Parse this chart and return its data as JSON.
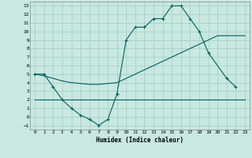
{
  "title": "",
  "xlabel": "Humidex (Indice chaleur)",
  "background_color": "#c8e8e0",
  "grid_color": "#a8d0c8",
  "line_color": "#006060",
  "xlim": [
    -0.5,
    23.5
  ],
  "ylim": [
    -1.5,
    13.5
  ],
  "xticks": [
    0,
    1,
    2,
    3,
    4,
    5,
    6,
    7,
    8,
    9,
    10,
    11,
    12,
    13,
    14,
    15,
    16,
    17,
    18,
    19,
    20,
    21,
    22,
    23
  ],
  "yticks": [
    -1,
    0,
    1,
    2,
    3,
    4,
    5,
    6,
    7,
    8,
    9,
    10,
    11,
    12,
    13
  ],
  "line1_x": [
    0,
    1,
    2,
    3,
    4,
    5,
    6,
    7,
    8,
    9,
    10,
    11,
    12,
    13,
    14,
    15,
    16,
    17,
    18,
    19,
    21,
    22
  ],
  "line1_y": [
    5.0,
    5.0,
    3.5,
    2.0,
    1.0,
    0.2,
    -0.3,
    -1.0,
    -0.3,
    2.7,
    9.0,
    10.5,
    10.5,
    11.5,
    11.5,
    13.0,
    13.0,
    11.5,
    10.0,
    7.5,
    4.5,
    3.5
  ],
  "line2_x": [
    0,
    1,
    2,
    3,
    4,
    5,
    6,
    7,
    8,
    9,
    10,
    11,
    12,
    13,
    14,
    15,
    16,
    17,
    18,
    19,
    20,
    21,
    22,
    23
  ],
  "line2_y": [
    5.0,
    4.8,
    4.5,
    4.2,
    4.0,
    3.9,
    3.8,
    3.8,
    3.9,
    4.0,
    4.5,
    5.0,
    5.5,
    6.0,
    6.5,
    7.0,
    7.5,
    8.0,
    8.5,
    9.0,
    9.5,
    9.5,
    9.5,
    9.5
  ],
  "line3_x": [
    0,
    1,
    2,
    3,
    4,
    5,
    6,
    7,
    8,
    9,
    10,
    11,
    12,
    13,
    14,
    15,
    16,
    17,
    18,
    19,
    20,
    21,
    22,
    23
  ],
  "line3_y": [
    2.0,
    2.0,
    2.0,
    2.0,
    2.0,
    2.0,
    2.0,
    2.0,
    2.0,
    2.0,
    2.0,
    2.0,
    2.0,
    2.0,
    2.0,
    2.0,
    2.0,
    2.0,
    2.0,
    2.0,
    2.0,
    2.0,
    2.0,
    2.0
  ]
}
